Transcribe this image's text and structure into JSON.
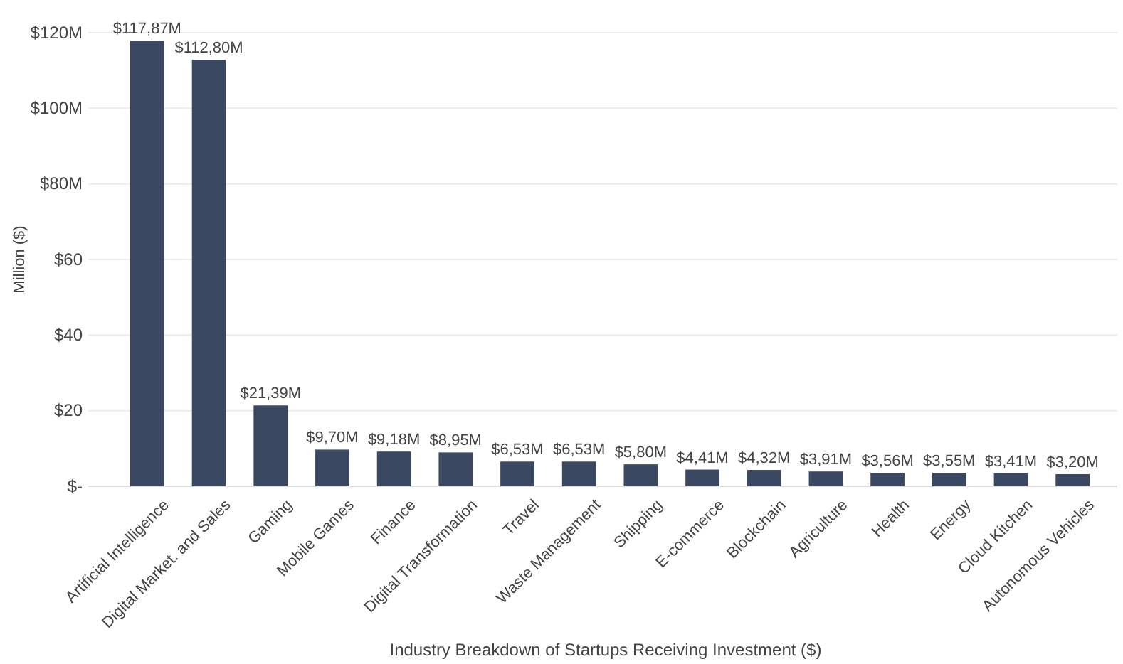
{
  "chart_data": {
    "type": "bar",
    "xlabel": "Industry Breakdown of Startups Receiving Investment ($)",
    "ylabel": "Million ($)",
    "categories": [
      "Artificial Intelligence",
      "Digital Market. and Sales",
      "Gaming",
      "Mobile Games",
      "Finance",
      "Digital Transformation",
      "Travel",
      "Waste Management",
      "Shipping",
      "E-commerce",
      "Blockchain",
      "Agriculture",
      "Health",
      "Energy",
      "Cloud Kitchen",
      "Autonomous Vehicles"
    ],
    "values": [
      117.87,
      112.8,
      21.39,
      9.7,
      9.18,
      8.95,
      6.53,
      6.53,
      5.8,
      4.41,
      4.32,
      3.91,
      3.56,
      3.55,
      3.41,
      3.2
    ],
    "value_labels": [
      "$117,87M",
      "$112,80M",
      "$21,39M",
      "$9,70M",
      "$9,18M",
      "$8,95M",
      "$6,53M",
      "$6,53M",
      "$5,80M",
      "$4,41M",
      "$4,32M",
      "$3,91M",
      "$3,56M",
      "$3,55M",
      "$3,41M",
      "$3,20M"
    ],
    "color": "#3a4861",
    "ylim": [
      0,
      120
    ],
    "yticks": [
      {
        "value": 0,
        "label": "$-"
      },
      {
        "value": 20,
        "label": "$20"
      },
      {
        "value": 40,
        "label": "$40"
      },
      {
        "value": 60,
        "label": "$60"
      },
      {
        "value": 80,
        "label": "$80M"
      },
      {
        "value": 100,
        "label": "$100M"
      },
      {
        "value": 120,
        "label": "$120M"
      }
    ],
    "grid": "y"
  }
}
